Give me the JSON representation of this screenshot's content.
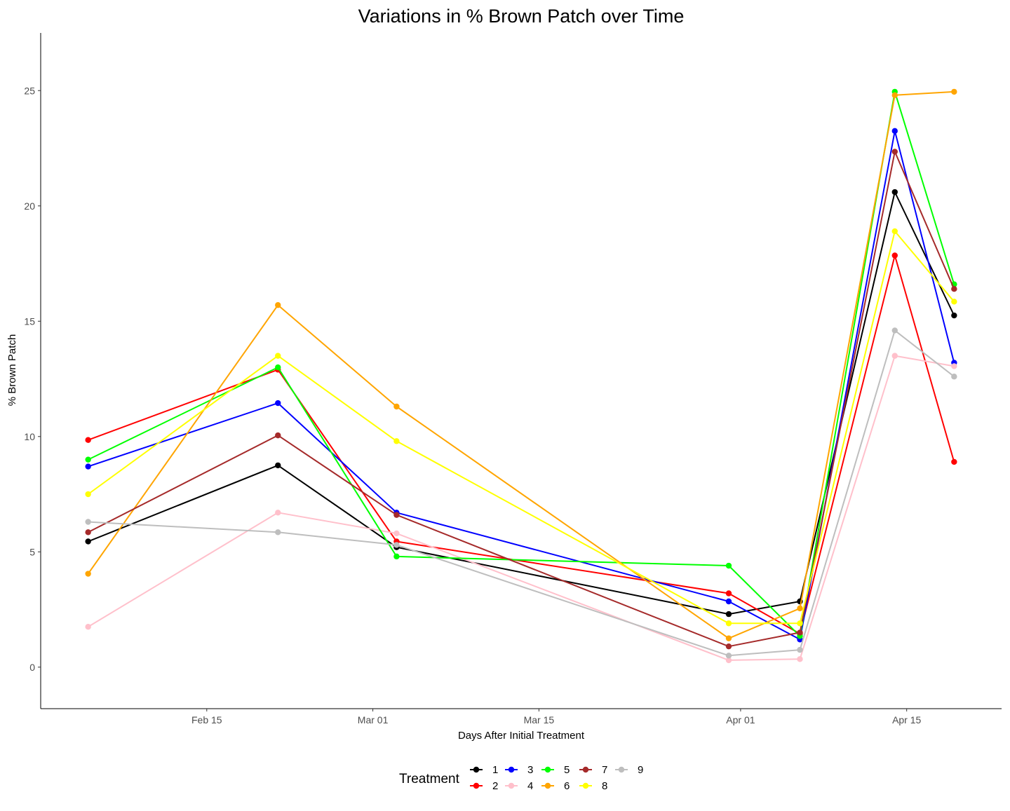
{
  "chart_data": {
    "type": "line",
    "title": "Variations in % Brown Patch over Time",
    "xlabel": "Days After Initial Treatment",
    "ylabel": "% Brown Patch",
    "x": [
      "2021-02-05",
      "2021-02-21",
      "2021-03-03",
      "2021-03-31",
      "2021-04-06",
      "2021-04-14",
      "2021-04-19"
    ],
    "xlim": [
      "2021-02-01",
      "2021-04-23"
    ],
    "x_ticks": [
      {
        "date": "2021-02-15",
        "label": "Feb 15"
      },
      {
        "date": "2021-03-01",
        "label": "Mar 01"
      },
      {
        "date": "2021-03-15",
        "label": "Mar 15"
      },
      {
        "date": "2021-04-01",
        "label": "Apr 01"
      },
      {
        "date": "2021-04-15",
        "label": "Apr 15"
      }
    ],
    "ylim": [
      -1.8,
      27.5
    ],
    "y_ticks": [
      0,
      5,
      10,
      15,
      20,
      25
    ],
    "grid": false,
    "legend": {
      "title": "Treatment",
      "position": "bottom"
    },
    "series": [
      {
        "name": "1",
        "color": "#000000",
        "values": [
          5.45,
          8.75,
          5.2,
          2.3,
          2.85,
          20.6,
          15.25
        ]
      },
      {
        "name": "2",
        "color": "#ff0000",
        "values": [
          9.85,
          12.9,
          5.45,
          3.2,
          1.45,
          17.85,
          8.9
        ]
      },
      {
        "name": "3",
        "color": "#0000ff",
        "values": [
          8.7,
          11.45,
          6.7,
          2.85,
          1.2,
          23.25,
          13.2
        ]
      },
      {
        "name": "4",
        "color": "#ffc0cb",
        "values": [
          1.75,
          6.7,
          5.8,
          0.3,
          0.35,
          13.5,
          13.05
        ]
      },
      {
        "name": "5",
        "color": "#00ff00",
        "values": [
          9.0,
          13.0,
          4.8,
          4.4,
          1.35,
          24.95,
          16.6
        ]
      },
      {
        "name": "6",
        "color": "#ffa500",
        "values": [
          4.05,
          15.7,
          11.3,
          1.25,
          2.55,
          24.8,
          24.95
        ]
      },
      {
        "name": "7",
        "color": "#a52a2a",
        "values": [
          5.85,
          10.05,
          6.6,
          0.9,
          1.5,
          22.35,
          16.4
        ]
      },
      {
        "name": "8",
        "color": "#ffff00",
        "values": [
          7.5,
          13.5,
          9.8,
          1.9,
          1.9,
          18.9,
          15.85
        ]
      },
      {
        "name": "9",
        "color": "#bebebe",
        "values": [
          6.3,
          5.85,
          5.3,
          0.5,
          0.75,
          14.6,
          12.6
        ]
      }
    ]
  }
}
